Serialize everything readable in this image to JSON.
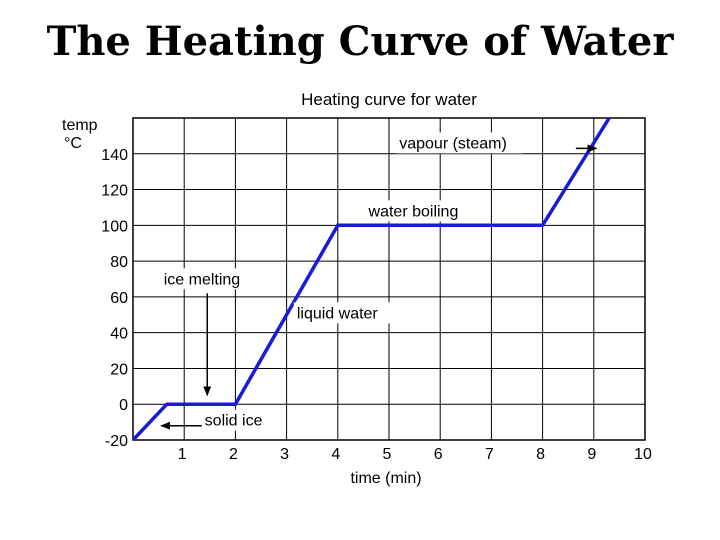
{
  "slide": {
    "title": "The Heating Curve of Water"
  },
  "chart_data": {
    "type": "line",
    "title": "Heating curve for water",
    "xlabel": "time (min)",
    "ylabel": [
      "temp",
      "°C"
    ],
    "x_ticks": [
      1,
      2,
      3,
      4,
      5,
      6,
      7,
      8,
      9,
      10
    ],
    "x_tick_labels": [
      "1",
      "2",
      "3",
      "4",
      "5",
      "6",
      "7",
      "8",
      "9",
      "10"
    ],
    "y_ticks": [
      -20,
      0,
      20,
      40,
      60,
      80,
      100,
      120,
      140
    ],
    "y_tick_labels": [
      "-20",
      "0",
      "20",
      "40",
      "60",
      "80",
      "100",
      "120",
      "140"
    ],
    "xlim": [
      0,
      10
    ],
    "ylim": [
      -20,
      160
    ],
    "grid": true,
    "series": [
      {
        "color": "#1a1adb",
        "points": [
          [
            0,
            -20
          ],
          [
            0.66,
            0
          ],
          [
            2,
            0
          ],
          [
            4,
            100
          ],
          [
            8,
            100
          ],
          [
            9.3,
            160
          ]
        ]
      }
    ],
    "annotations": [
      {
        "text": "vapour (steam)",
        "x": 5.2,
        "y": 143,
        "arrow_from": [
          8.65,
          143
        ],
        "arrow_to": [
          9.05,
          143
        ]
      },
      {
        "text": "water boiling",
        "x": 4.6,
        "y": 105
      },
      {
        "text": "ice melting",
        "x": 0.6,
        "y": 67,
        "arrow_from": [
          1.45,
          62
        ],
        "arrow_to": [
          1.45,
          5
        ]
      },
      {
        "text": "liquid water",
        "x": 3.2,
        "y": 48
      },
      {
        "text": "solid ice",
        "x": 1.4,
        "y": -12,
        "arrow_from": [
          1.35,
          -12
        ],
        "arrow_to": [
          0.55,
          -12
        ]
      }
    ]
  }
}
